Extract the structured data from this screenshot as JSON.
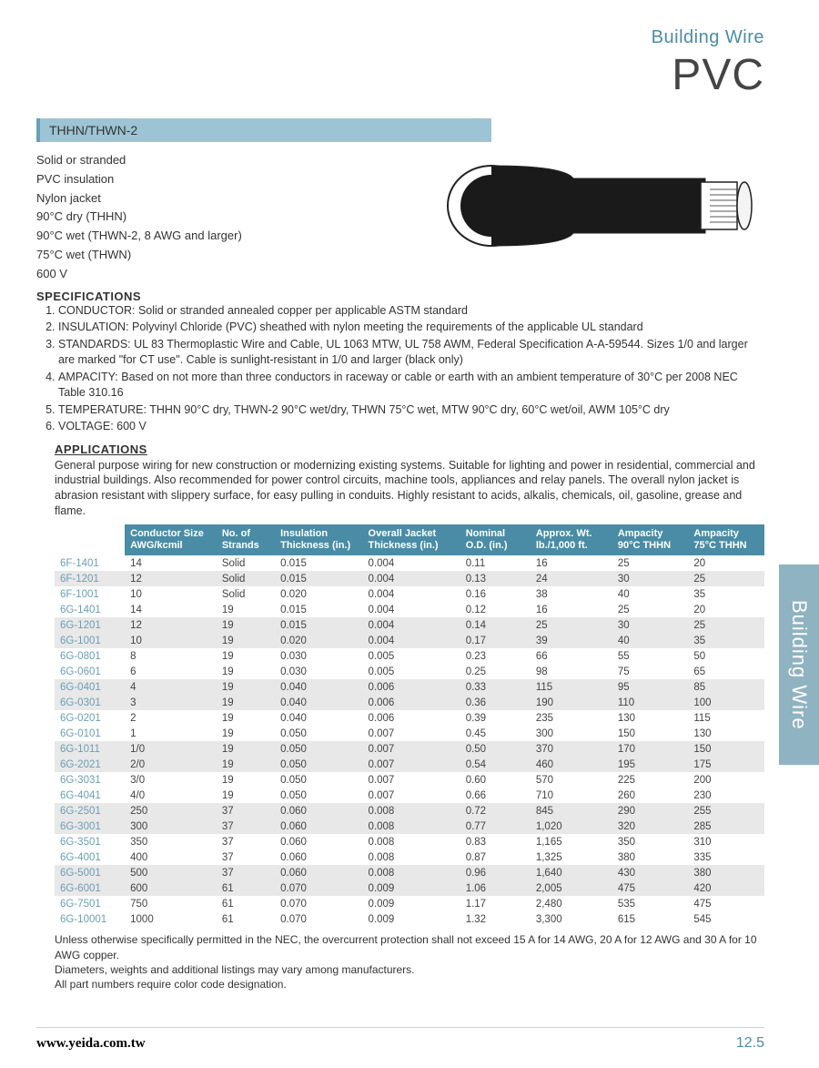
{
  "header": {
    "category": "Building Wire",
    "title": "PVC"
  },
  "side_tab": "Building Wire",
  "section_label": "THHN/THWN-2",
  "features": [
    "Solid or stranded",
    "PVC insulation",
    "Nylon jacket",
    "90°C dry (THHN)",
    "90°C wet (THWN-2, 8 AWG and larger)",
    "75°C wet (THWN)",
    "600 V"
  ],
  "spec_title": "SPECIFICATIONS",
  "specs": [
    "CONDUCTOR: Solid or stranded annealed copper per applicable ASTM standard",
    "INSULATION: Polyvinyl Chloride (PVC) sheathed with nylon meeting the requirements of the applicable UL standard",
    "STANDARDS: UL 83 Thermoplastic Wire and Cable, UL 1063 MTW, UL 758 AWM, Federal Specification A-A-59544. Sizes 1/0 and larger are marked \"for CT use\". Cable is sunlight-resistant in 1/0 and larger (black only)",
    "AMPACITY: Based on not more than three conductors in raceway or cable or earth with an ambient temperature of 30°C per 2008 NEC Table 310.16",
    "TEMPERATURE: THHN 90°C dry, THWN-2 90°C wet/dry, THWN 75°C wet, MTW 90°C dry, 60°C wet/oil, AWM 105°C dry",
    "VOLTAGE: 600 V"
  ],
  "apps_title": "APPLICATIONS",
  "apps_text": "General purpose wiring for new construction or modernizing existing systems. Suitable for lighting and power in residential, commercial and industrial buildings. Also recommended for power control circuits, machine tools, appliances and relay panels. The overall nylon jacket is abrasion resistant with slippery surface, for easy pulling in conduits. Highly resistant to acids, alkalis, chemicals, oil, gasoline, grease and flame.",
  "table": {
    "columns": [
      "",
      "Conductor Size AWG/kcmil",
      "No. of Strands",
      "Insulation Thickness (in.)",
      "Overall Jacket Thickness (in.)",
      "Nominal O.D. (in.)",
      "Approx. Wt. lb./1,000 ft.",
      "Ampacity 90°C THHN",
      "Ampacity 75°C THHN"
    ],
    "col_widths": [
      "72px",
      "94px",
      "60px",
      "90px",
      "100px",
      "72px",
      "84px",
      "78px",
      "78px"
    ],
    "rows": [
      {
        "alt": false,
        "c": [
          "6F-1401",
          "14",
          "Solid",
          "0.015",
          "0.004",
          "0.11",
          "16",
          "25",
          "20"
        ]
      },
      {
        "alt": true,
        "c": [
          "6F-1201",
          "12",
          "Solid",
          "0.015",
          "0.004",
          "0.13",
          "24",
          "30",
          "25"
        ]
      },
      {
        "alt": false,
        "c": [
          "6F-1001",
          "10",
          "Solid",
          "0.020",
          "0.004",
          "0.16",
          "38",
          "40",
          "35"
        ]
      },
      {
        "alt": false,
        "c": [
          "6G-1401",
          "14",
          "19",
          "0.015",
          "0.004",
          "0.12",
          "16",
          "25",
          "20"
        ]
      },
      {
        "alt": true,
        "c": [
          "6G-1201",
          "12",
          "19",
          "0.015",
          "0.004",
          "0.14",
          "25",
          "30",
          "25"
        ]
      },
      {
        "alt": true,
        "c": [
          "6G-1001",
          "10",
          "19",
          "0.020",
          "0.004",
          "0.17",
          "39",
          "40",
          "35"
        ]
      },
      {
        "alt": false,
        "c": [
          "6G-0801",
          "8",
          "19",
          "0.030",
          "0.005",
          "0.23",
          "66",
          "55",
          "50"
        ]
      },
      {
        "alt": false,
        "c": [
          "6G-0601",
          "6",
          "19",
          "0.030",
          "0.005",
          "0.25",
          "98",
          "75",
          "65"
        ]
      },
      {
        "alt": true,
        "c": [
          "6G-0401",
          "4",
          "19",
          "0.040",
          "0.006",
          "0.33",
          "115",
          "95",
          "85"
        ]
      },
      {
        "alt": true,
        "c": [
          "6G-0301",
          "3",
          "19",
          "0.040",
          "0.006",
          "0.36",
          "190",
          "110",
          "100"
        ]
      },
      {
        "alt": false,
        "c": [
          "6G-0201",
          "2",
          "19",
          "0.040",
          "0.006",
          "0.39",
          "235",
          "130",
          "115"
        ]
      },
      {
        "alt": false,
        "c": [
          "6G-0101",
          "1",
          "19",
          "0.050",
          "0.007",
          "0.45",
          "300",
          "150",
          "130"
        ]
      },
      {
        "alt": true,
        "c": [
          "6G-1011",
          "1/0",
          "19",
          "0.050",
          "0.007",
          "0.50",
          "370",
          "170",
          "150"
        ]
      },
      {
        "alt": true,
        "c": [
          "6G-2021",
          "2/0",
          "19",
          "0.050",
          "0.007",
          "0.54",
          "460",
          "195",
          "175"
        ]
      },
      {
        "alt": false,
        "c": [
          "6G-3031",
          "3/0",
          "19",
          "0.050",
          "0.007",
          "0.60",
          "570",
          "225",
          "200"
        ]
      },
      {
        "alt": false,
        "c": [
          "6G-4041",
          "4/0",
          "19",
          "0.050",
          "0.007",
          "0.66",
          "710",
          "260",
          "230"
        ]
      },
      {
        "alt": true,
        "c": [
          "6G-2501",
          "250",
          "37",
          "0.060",
          "0.008",
          "0.72",
          "845",
          "290",
          "255"
        ]
      },
      {
        "alt": true,
        "c": [
          "6G-3001",
          "300",
          "37",
          "0.060",
          "0.008",
          "0.77",
          "1,020",
          "320",
          "285"
        ]
      },
      {
        "alt": false,
        "c": [
          "6G-3501",
          "350",
          "37",
          "0.060",
          "0.008",
          "0.83",
          "1,165",
          "350",
          "310"
        ]
      },
      {
        "alt": false,
        "c": [
          "6G-4001",
          "400",
          "37",
          "0.060",
          "0.008",
          "0.87",
          "1,325",
          "380",
          "335"
        ]
      },
      {
        "alt": true,
        "c": [
          "6G-5001",
          "500",
          "37",
          "0.060",
          "0.008",
          "0.96",
          "1,640",
          "430",
          "380"
        ]
      },
      {
        "alt": true,
        "c": [
          "6G-6001",
          "600",
          "61",
          "0.070",
          "0.009",
          "1.06",
          "2,005",
          "475",
          "420"
        ]
      },
      {
        "alt": false,
        "c": [
          "6G-7501",
          "750",
          "61",
          "0.070",
          "0.009",
          "1.17",
          "2,480",
          "535",
          "475"
        ]
      },
      {
        "alt": false,
        "c": [
          "6G-10001",
          "1000",
          "61",
          "0.070",
          "0.009",
          "1.32",
          "3,300",
          "615",
          "545"
        ]
      }
    ]
  },
  "table_notes": [
    "Unless otherwise specifically permitted in the NEC, the overcurrent protection shall not exceed 15 A for 14 AWG, 20 A for 12 AWG and 30 A for 10 AWG copper.",
    "Diameters, weights and additional listings may vary among manufacturers.",
    "All part numbers require color code designation."
  ],
  "footer": {
    "url": "www.yeida.com.tw",
    "page": "12.5"
  },
  "colors": {
    "header_accent": "#4a8ca5",
    "section_bar_bg": "#9dc4d4",
    "side_tab_bg": "#8fb3c1",
    "table_header_bg": "#4a8ca5",
    "row_alt_bg": "#e8e8e8",
    "partno_color": "#6a9fb5"
  }
}
